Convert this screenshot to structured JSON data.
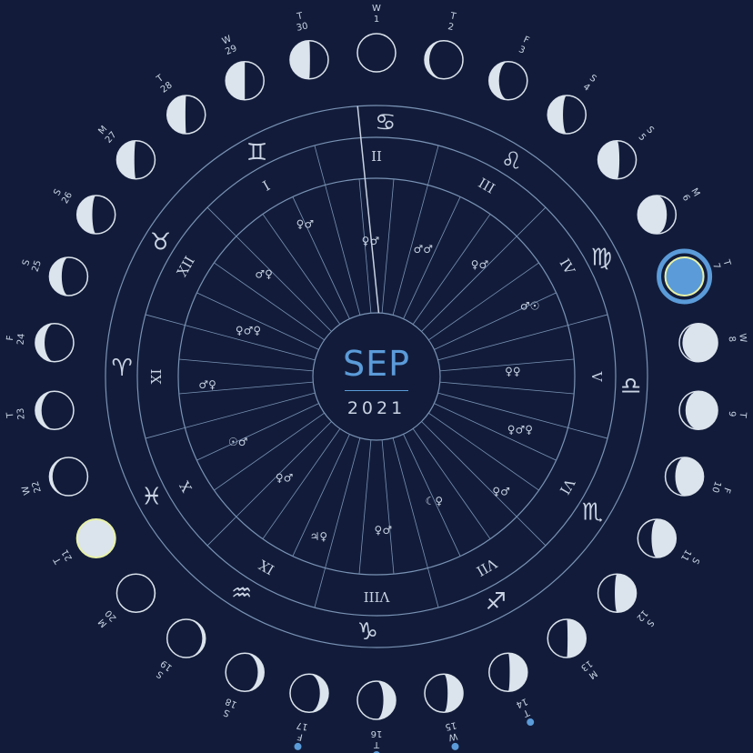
{
  "calendar": {
    "month": "SEP",
    "year": "2021"
  },
  "colors": {
    "background": "#121c3a",
    "ring": "#7a93b5",
    "moon_light": "#dbe3ec",
    "moon_dark": "#121c3a",
    "today": "#5b9bd9",
    "highlight": "#e8f2a6",
    "dot": "#5b9bd9"
  },
  "days": [
    {
      "weekday": "W",
      "day": "1",
      "phase": 0.5
    },
    {
      "weekday": "T",
      "day": "2",
      "phase": 0.56
    },
    {
      "weekday": "F",
      "day": "3",
      "phase": 0.63
    },
    {
      "weekday": "S",
      "day": "4",
      "phase": 0.7
    },
    {
      "weekday": "S",
      "day": "5",
      "phase": 0.78
    },
    {
      "weekday": "M",
      "day": "6",
      "phase": 0.88
    },
    {
      "weekday": "T",
      "day": "7",
      "phase": 0.0,
      "today": true
    },
    {
      "weekday": "W",
      "day": "8",
      "phase": 0.04
    },
    {
      "weekday": "T",
      "day": "9",
      "phase": 0.08
    },
    {
      "weekday": "F",
      "day": "10",
      "phase": 0.13
    },
    {
      "weekday": "S",
      "day": "11",
      "phase": 0.18
    },
    {
      "weekday": "S",
      "day": "12",
      "phase": 0.22
    },
    {
      "weekday": "M",
      "day": "13",
      "phase": 0.26
    },
    {
      "weekday": "T",
      "day": "14",
      "phase": 0.27,
      "dot": true
    },
    {
      "weekday": "W",
      "day": "15",
      "phase": 0.3,
      "dot": true
    },
    {
      "weekday": "T",
      "day": "16",
      "phase": 0.34,
      "dot": true
    },
    {
      "weekday": "F",
      "day": "17",
      "phase": 0.39,
      "dot": true
    },
    {
      "weekday": "S",
      "day": "18",
      "phase": 0.42
    },
    {
      "weekday": "S",
      "day": "19",
      "phase": 0.46
    },
    {
      "weekday": "M",
      "day": "20",
      "phase": 0.49
    },
    {
      "weekday": "T",
      "day": "21",
      "phase": 0.5,
      "full": true
    },
    {
      "weekday": "W",
      "day": "22",
      "phase": 0.54
    },
    {
      "weekday": "T",
      "day": "23",
      "phase": 0.58
    },
    {
      "weekday": "F",
      "day": "24",
      "phase": 0.62
    },
    {
      "weekday": "S",
      "day": "25",
      "phase": 0.66
    },
    {
      "weekday": "S",
      "day": "26",
      "phase": 0.7
    },
    {
      "weekday": "M",
      "day": "27",
      "phase": 0.73
    },
    {
      "weekday": "T",
      "day": "28",
      "phase": 0.74
    },
    {
      "weekday": "W",
      "day": "29",
      "phase": 0.75
    },
    {
      "weekday": "T",
      "day": "30",
      "phase": 0.76
    }
  ],
  "zodiac": [
    {
      "name": "cancer-icon",
      "glyph": "♋"
    },
    {
      "name": "leo-icon",
      "glyph": "♌"
    },
    {
      "name": "virgo-icon",
      "glyph": "♍"
    },
    {
      "name": "libra-icon",
      "glyph": "♎"
    },
    {
      "name": "scorpio-icon",
      "glyph": "♏"
    },
    {
      "name": "sagittarius-icon",
      "glyph": "♐"
    },
    {
      "name": "capricorn-icon",
      "glyph": "♑"
    },
    {
      "name": "aquarius-icon",
      "glyph": "♒"
    },
    {
      "name": "pisces-icon",
      "glyph": "♓"
    },
    {
      "name": "aries-icon",
      "glyph": "♈"
    },
    {
      "name": "taurus-icon",
      "glyph": "♉"
    },
    {
      "name": "gemini-icon",
      "glyph": "♊"
    }
  ],
  "houses": [
    "I",
    "II",
    "III",
    "IV",
    "V",
    "VI",
    "VII",
    "VIII",
    "IX",
    "X",
    "XI",
    "XII"
  ],
  "aspects": [
    {
      "glyph": "♂♂"
    },
    {
      "glyph": "♀♂"
    },
    {
      "glyph": "♂☉"
    },
    {
      "glyph": "♀♀"
    },
    {
      "glyph": "♀♂♀"
    },
    {
      "glyph": "♀♂"
    },
    {
      "glyph": "☾♀"
    },
    {
      "glyph": "♀♂"
    },
    {
      "glyph": "♃♀"
    },
    {
      "glyph": "♀♂"
    },
    {
      "glyph": "☉♂"
    },
    {
      "glyph": "♂♀"
    },
    {
      "glyph": "♀♂♀"
    },
    {
      "glyph": "♂♀"
    },
    {
      "glyph": "♀♂"
    },
    {
      "glyph": "♀♂"
    }
  ]
}
